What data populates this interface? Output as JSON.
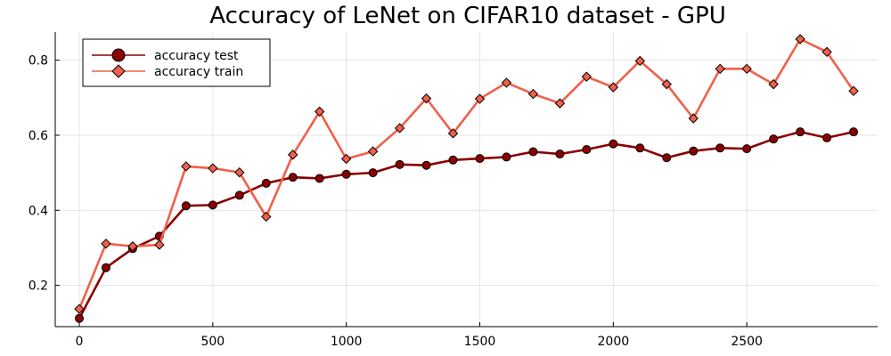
{
  "chart_data": {
    "type": "line",
    "title": "Accuracy of LeNet on CIFAR10 dataset - GPU",
    "xlabel": "",
    "ylabel": "",
    "x": [
      0,
      100,
      200,
      300,
      400,
      500,
      600,
      700,
      800,
      900,
      1000,
      1100,
      1200,
      1300,
      1400,
      1500,
      1600,
      1700,
      1800,
      1900,
      2000,
      2100,
      2200,
      2300,
      2400,
      2500,
      2600,
      2700,
      2800,
      2900
    ],
    "xlim": [
      -90,
      2990
    ],
    "ylim": [
      0.09,
      0.875
    ],
    "xticks": [
      0,
      500,
      1000,
      1500,
      2000,
      2500
    ],
    "xtick_labels": [
      "0",
      "500",
      "1000",
      "1500",
      "2000",
      "2500"
    ],
    "yticks": [
      0.2,
      0.4,
      0.6,
      0.8
    ],
    "ytick_labels": [
      "0.2",
      "0.4",
      "0.6",
      "0.8"
    ],
    "grid": true,
    "legend_position": "top-left",
    "series": [
      {
        "name": "accuracy test",
        "color": "#8b0000",
        "marker": "circle",
        "values": [
          0.112,
          0.247,
          0.298,
          0.331,
          0.412,
          0.414,
          0.44,
          0.472,
          0.488,
          0.485,
          0.496,
          0.5,
          0.522,
          0.52,
          0.534,
          0.538,
          0.542,
          0.556,
          0.55,
          0.562,
          0.577,
          0.566,
          0.54,
          0.558,
          0.566,
          0.564,
          0.59,
          0.609,
          0.593,
          0.609
        ]
      },
      {
        "name": "accuracy train",
        "color": "#f0604a",
        "marker": "diamond",
        "values": [
          0.137,
          0.311,
          0.304,
          0.308,
          0.517,
          0.512,
          0.501,
          0.383,
          0.548,
          0.663,
          0.537,
          0.557,
          0.619,
          0.698,
          0.605,
          0.697,
          0.74,
          0.71,
          0.685,
          0.756,
          0.728,
          0.798,
          0.736,
          0.645,
          0.777,
          0.777,
          0.736,
          0.856,
          0.822,
          0.718
        ]
      }
    ]
  }
}
